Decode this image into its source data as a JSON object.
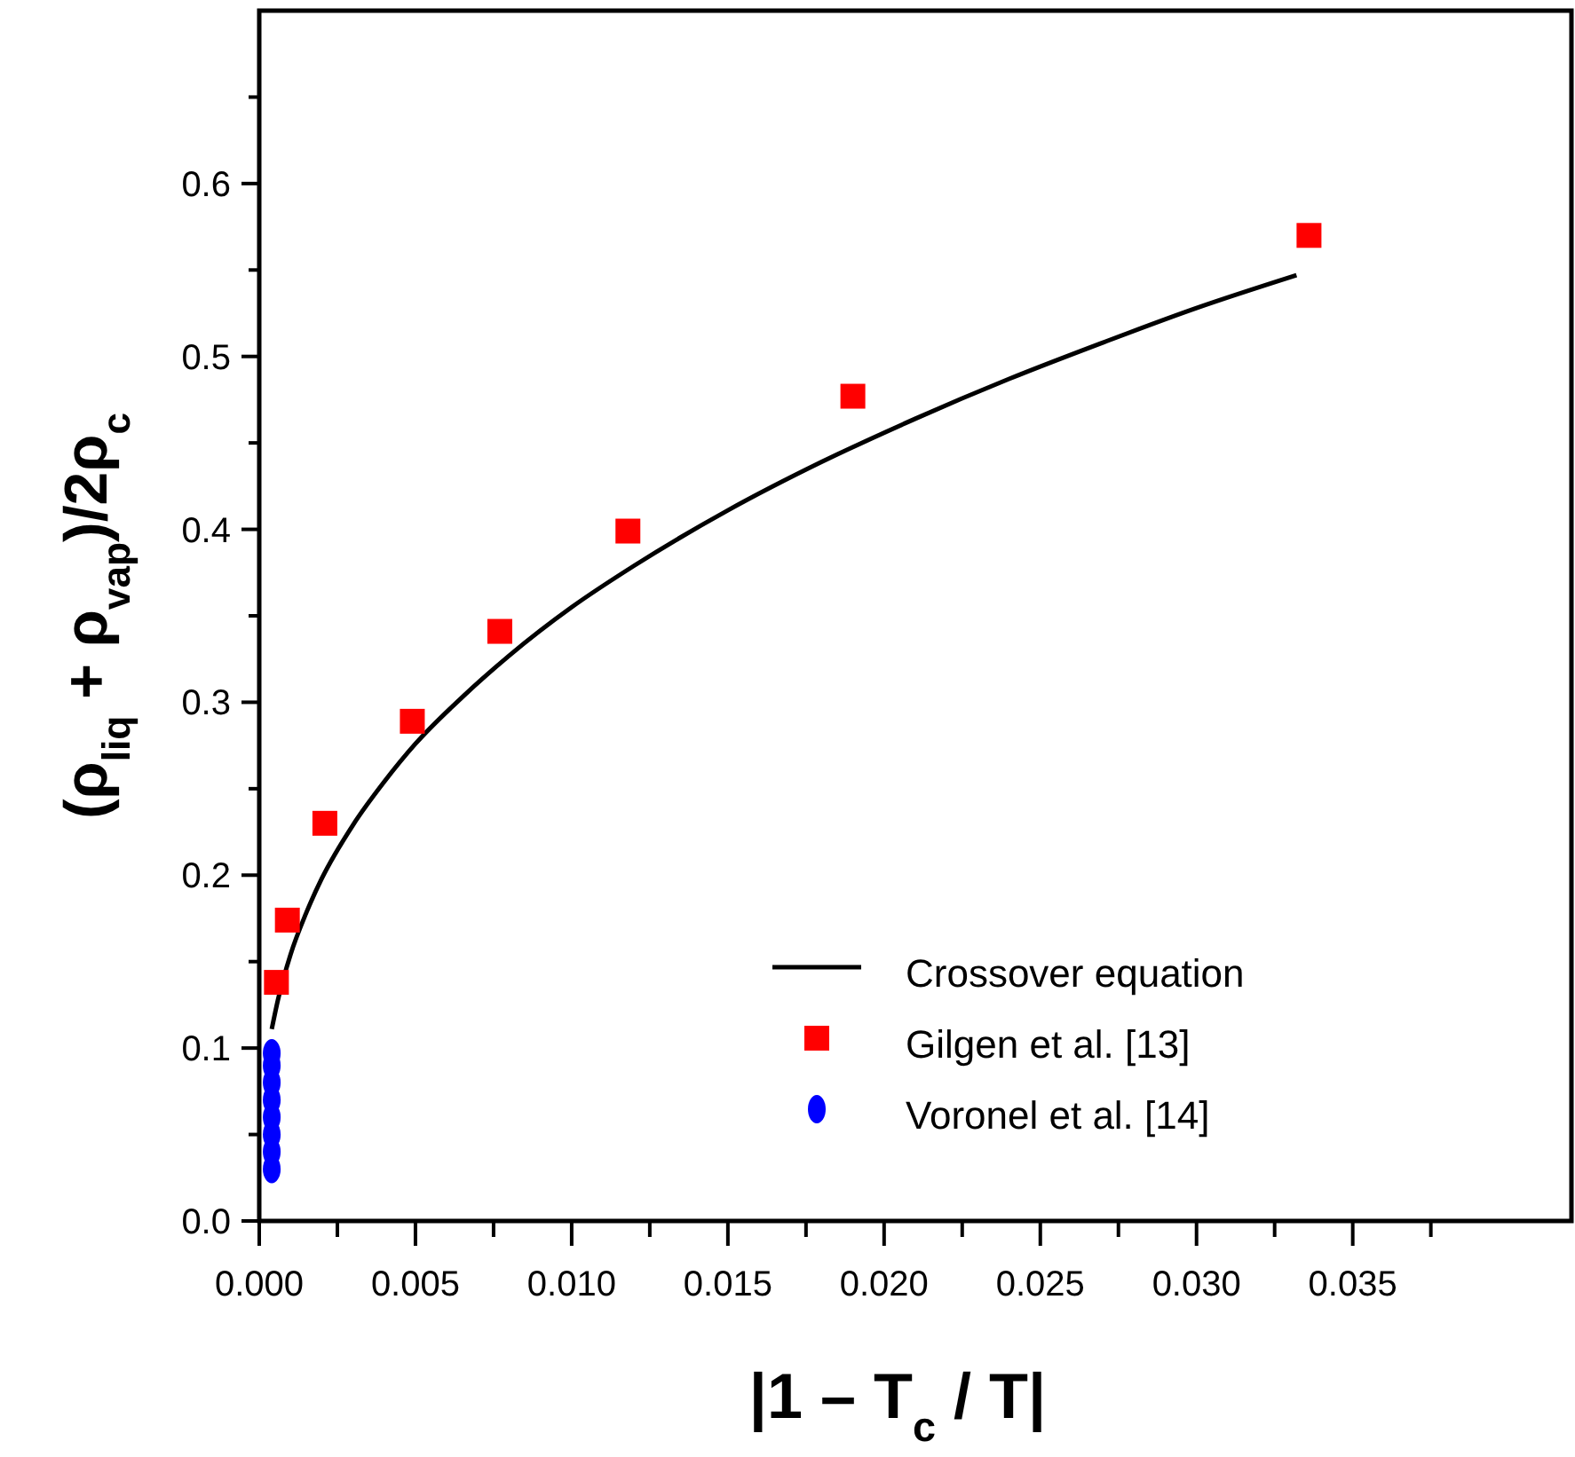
{
  "chart_data": {
    "type": "scatter",
    "xlabel": "|1 – T$_{c}$ / T|",
    "ylabel": "(ρ$_{liq}$ + ρ$_{vap}$)/2ρ$_{c}$",
    "xlim": [
      0,
      0.042
    ],
    "ylim": [
      0,
      0.7
    ],
    "xticks": [
      {
        "value": 0,
        "label": "0.000"
      },
      {
        "value": 0.0025,
        "label": null
      },
      {
        "value": 0.005,
        "label": "0.005"
      },
      {
        "value": 0.0075,
        "label": null
      },
      {
        "value": 0.01,
        "label": "0.010"
      },
      {
        "value": 0.0125,
        "label": null
      },
      {
        "value": 0.015,
        "label": "0.015"
      },
      {
        "value": 0.0175,
        "label": null
      },
      {
        "value": 0.02,
        "label": "0.020"
      },
      {
        "value": 0.0225,
        "label": null
      },
      {
        "value": 0.025,
        "label": "0.025"
      },
      {
        "value": 0.0275,
        "label": null
      },
      {
        "value": 0.03,
        "label": "0.030"
      },
      {
        "value": 0.0325,
        "label": null
      },
      {
        "value": 0.035,
        "label": "0.035"
      },
      {
        "value": 0.0375,
        "label": null
      }
    ],
    "yticks": [
      {
        "value": 0,
        "label": "0.0"
      },
      {
        "value": 0.05,
        "label": null
      },
      {
        "value": 0.1,
        "label": "0.1"
      },
      {
        "value": 0.15,
        "label": null
      },
      {
        "value": 0.2,
        "label": "0.2"
      },
      {
        "value": 0.25,
        "label": null
      },
      {
        "value": 0.3,
        "label": "0.3"
      },
      {
        "value": 0.35,
        "label": null
      },
      {
        "value": 0.4,
        "label": "0.4"
      },
      {
        "value": 0.45,
        "label": null
      },
      {
        "value": 0.5,
        "label": "0.5"
      },
      {
        "value": 0.55,
        "label": null
      },
      {
        "value": 0.6,
        "label": "0.6"
      },
      {
        "value": 0.65,
        "label": null
      }
    ],
    "grid": false,
    "legend": "bottom right",
    "series": [
      {
        "name": "Crossover equation",
        "type": "line",
        "color": "#000000",
        "marker": "none",
        "line_style": "solid",
        "x": [
          0.0004,
          0.0006,
          0.001,
          0.0015,
          0.002,
          0.003,
          0.004,
          0.005,
          0.0065,
          0.008,
          0.01,
          0.012,
          0.015,
          0.018,
          0.021,
          0.024,
          0.027,
          0.03,
          0.0332
        ],
        "values": [
          0.111,
          0.128,
          0.154,
          0.178,
          0.198,
          0.229,
          0.254,
          0.276,
          0.303,
          0.327,
          0.355,
          0.379,
          0.411,
          0.439,
          0.464,
          0.487,
          0.508,
          0.528,
          0.547
        ]
      },
      {
        "name": "Gilgen et al. [13]",
        "color": "#ff0000",
        "marker": "square",
        "x": [
          0.00055,
          0.0009,
          0.0021,
          0.0049,
          0.0077,
          0.0118,
          0.019,
          0.0336
        ],
        "values": [
          0.138,
          0.174,
          0.23,
          0.289,
          0.341,
          0.399,
          0.477,
          0.57
        ]
      },
      {
        "name": "Voronel et al. [14]",
        "color": "#0000ff",
        "marker": "circle",
        "x": [
          0.0004,
          0.0004,
          0.0004,
          0.0004,
          0.0004,
          0.0004,
          0.0004,
          0.0004
        ],
        "values": [
          0.03,
          0.04,
          0.05,
          0.06,
          0.07,
          0.08,
          0.09,
          0.097
        ]
      }
    ]
  }
}
